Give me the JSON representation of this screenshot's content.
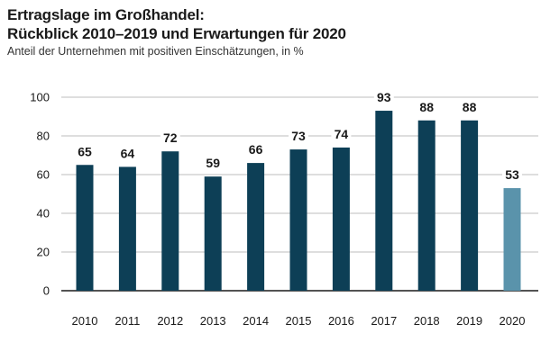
{
  "chart_data": {
    "type": "bar",
    "title_line1": "Ertragslage im Großhandel:",
    "title_line2": "Rückblick 2010–2019 und Erwartungen für 2020",
    "subtitle": "Anteil der Unternehmen mit positiven Einschätzungen, in %",
    "categories": [
      "2010",
      "2011",
      "2012",
      "2013",
      "2014",
      "2015",
      "2016",
      "2017",
      "2018",
      "2019",
      "2020"
    ],
    "values": [
      65,
      64,
      72,
      59,
      66,
      73,
      74,
      93,
      88,
      88,
      53
    ],
    "expectation_categories": [
      "2020"
    ],
    "ylim": [
      0,
      100
    ],
    "yticks": [
      0,
      20,
      40,
      60,
      80,
      100
    ],
    "grid": true,
    "xlabel": "",
    "ylabel": "",
    "colors": {
      "actual": "#0d3f56",
      "expectation": "#5a93ab",
      "grid": "#bdbdbd",
      "axis": "#1a1a1a"
    }
  }
}
